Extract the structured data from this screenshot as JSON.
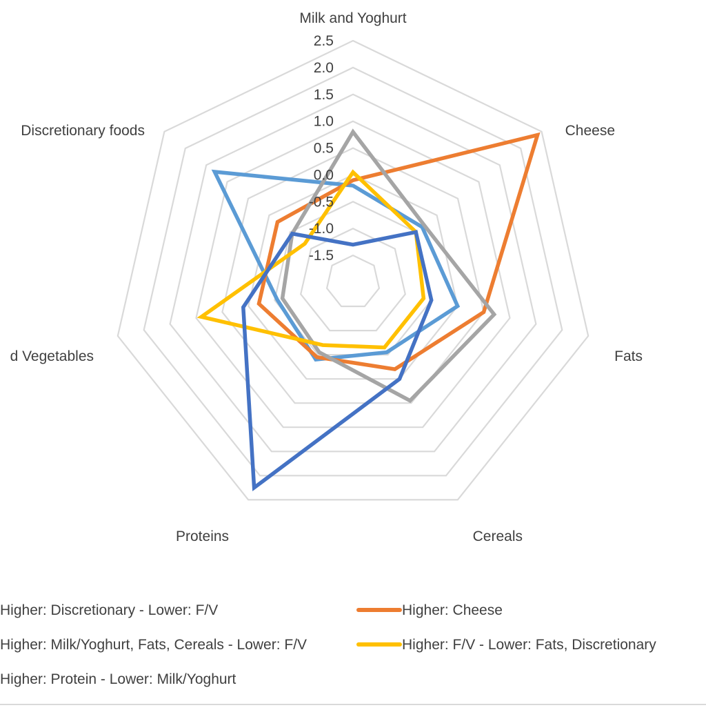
{
  "chart_data": {
    "type": "radar",
    "axes": [
      "Milk and Yoghurt",
      "Cheese",
      "Fats",
      "Cereals",
      "Proteins",
      "Fruit and Vegetables",
      "Discretionary foods"
    ],
    "axis_label_text": [
      "Milk and Yoghurt",
      "Cheese",
      "Fats",
      "Cereals",
      "Proteins",
      "d Vegetables",
      "Discretionary foods"
    ],
    "rlim": [
      -2.0,
      2.5
    ],
    "ticks": [
      2.5,
      2.0,
      1.5,
      1.0,
      0.5,
      0.0,
      -0.5,
      -1.0,
      -1.5
    ],
    "tick_labels": [
      "2.5",
      "2.0",
      "1.5",
      "1.0",
      "0.5",
      "0.0",
      "-0.5",
      "-1.0",
      "-1.5"
    ],
    "grid": true,
    "legend_position": "bottom",
    "series": [
      {
        "name": "Higher: Discretionary - Lower: F/V",
        "values": [
          -0.2,
          -0.35,
          0.0,
          -0.55,
          -0.4,
          -0.55,
          1.3
        ],
        "color": "#5B9BD5"
      },
      {
        "name": "Higher: Cheese",
        "values": [
          -0.1,
          2.4,
          0.5,
          -0.2,
          -0.45,
          -0.2,
          -0.2
        ],
        "color": "#ED7D31"
      },
      {
        "name": "Higher: Milk/Yoghurt, Fats, Cereals - Lower: F/V",
        "values": [
          0.8,
          -0.3,
          0.7,
          0.45,
          -0.55,
          -0.65,
          -0.55
        ],
        "color": "#A5A5A5"
      },
      {
        "name": "Higher: F/V - Lower: Fats, Discretionary",
        "values": [
          0.05,
          -0.5,
          -0.65,
          -0.65,
          -0.7,
          0.9,
          -0.85
        ],
        "color": "#FFC000"
      },
      {
        "name": "Higher: Protein - Lower: Milk/Yoghurt",
        "values": [
          -1.3,
          -0.5,
          -0.5,
          0.0,
          2.25,
          0.1,
          -0.55
        ],
        "color": "#4472C4"
      }
    ]
  },
  "legend": {
    "items": [
      {
        "label": "Higher: Discretionary - Lower: F/V",
        "color": "#5B9BD5"
      },
      {
        "label": "Higher: Cheese",
        "color": "#ED7D31"
      },
      {
        "label": "Higher: Milk/Yoghurt, Fats, Cereals - Lower: F/V",
        "color": "#A5A5A5"
      },
      {
        "label": "Higher: F/V - Lower: Fats, Discretionary",
        "color": "#FFC000"
      },
      {
        "label": "Higher: Protein - Lower: Milk/Yoghurt",
        "color": "#4472C4"
      }
    ]
  }
}
